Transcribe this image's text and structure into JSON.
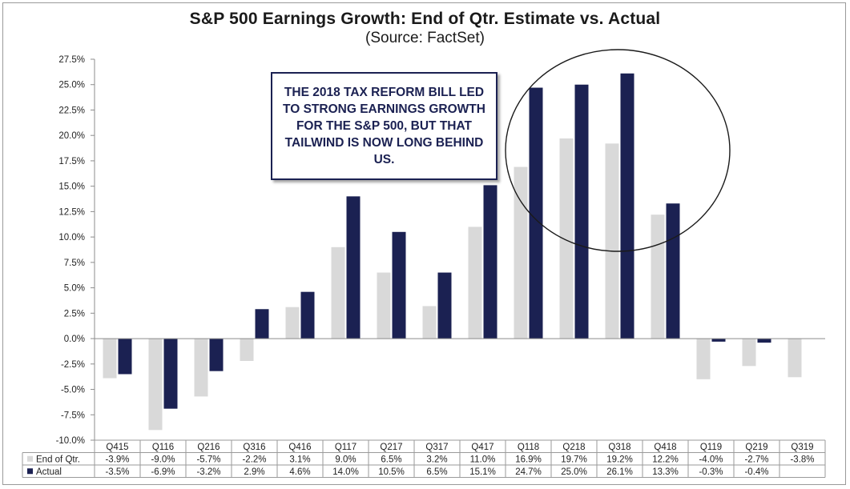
{
  "chart_data": {
    "type": "bar",
    "title": "S&P 500 Earnings Growth: End of Qtr. Estimate vs. Actual",
    "subtitle": "(Source: FactSet)",
    "categories": [
      "Q415",
      "Q116",
      "Q216",
      "Q316",
      "Q416",
      "Q117",
      "Q217",
      "Q317",
      "Q417",
      "Q118",
      "Q218",
      "Q318",
      "Q418",
      "Q119",
      "Q219",
      "Q319"
    ],
    "series": [
      {
        "name": "End of Qtr.",
        "color": "#d9d9d9",
        "values": [
          -3.9,
          -9.0,
          -5.7,
          -2.2,
          3.1,
          9.0,
          6.5,
          3.2,
          11.0,
          16.9,
          19.7,
          19.2,
          12.2,
          -4.0,
          -2.7,
          -3.8
        ],
        "labels": [
          "-3.9%",
          "-9.0%",
          "-5.7%",
          "-2.2%",
          "3.1%",
          "9.0%",
          "6.5%",
          "3.2%",
          "11.0%",
          "16.9%",
          "19.7%",
          "19.2%",
          "12.2%",
          "-4.0%",
          "-2.7%",
          "-3.8%"
        ]
      },
      {
        "name": "Actual",
        "color": "#1b2152",
        "values": [
          -3.5,
          -6.9,
          -3.2,
          2.9,
          4.6,
          14.0,
          10.5,
          6.5,
          15.1,
          24.7,
          25.0,
          26.1,
          13.3,
          -0.3,
          -0.4,
          null
        ],
        "labels": [
          "-3.5%",
          "-6.9%",
          "-3.2%",
          "2.9%",
          "4.6%",
          "14.0%",
          "10.5%",
          "6.5%",
          "15.1%",
          "24.7%",
          "25.0%",
          "26.1%",
          "13.3%",
          "-0.3%",
          "-0.4%",
          ""
        ]
      }
    ],
    "ylim": [
      -10.0,
      27.5
    ],
    "yticks": [
      "-10.0%",
      "-7.5%",
      "-5.0%",
      "-2.5%",
      "0.0%",
      "2.5%",
      "5.0%",
      "7.5%",
      "10.0%",
      "12.5%",
      "15.0%",
      "17.5%",
      "20.0%",
      "22.5%",
      "25.0%",
      "27.5%"
    ],
    "ytick_values": [
      -10,
      -7.5,
      -5,
      -2.5,
      0,
      2.5,
      5,
      7.5,
      10,
      12.5,
      15,
      17.5,
      20,
      22.5,
      25,
      27.5
    ],
    "grid": false,
    "legend": "data table below chart",
    "annotation": {
      "text": "THE 2018 TAX REFORM BILL LED TO STRONG EARNINGS GROWTH FOR THE S&P 500, BUT THAT TAILWIND IS NOW LONG BEHIND US.",
      "highlight": "circle around Q118–Q418"
    }
  }
}
